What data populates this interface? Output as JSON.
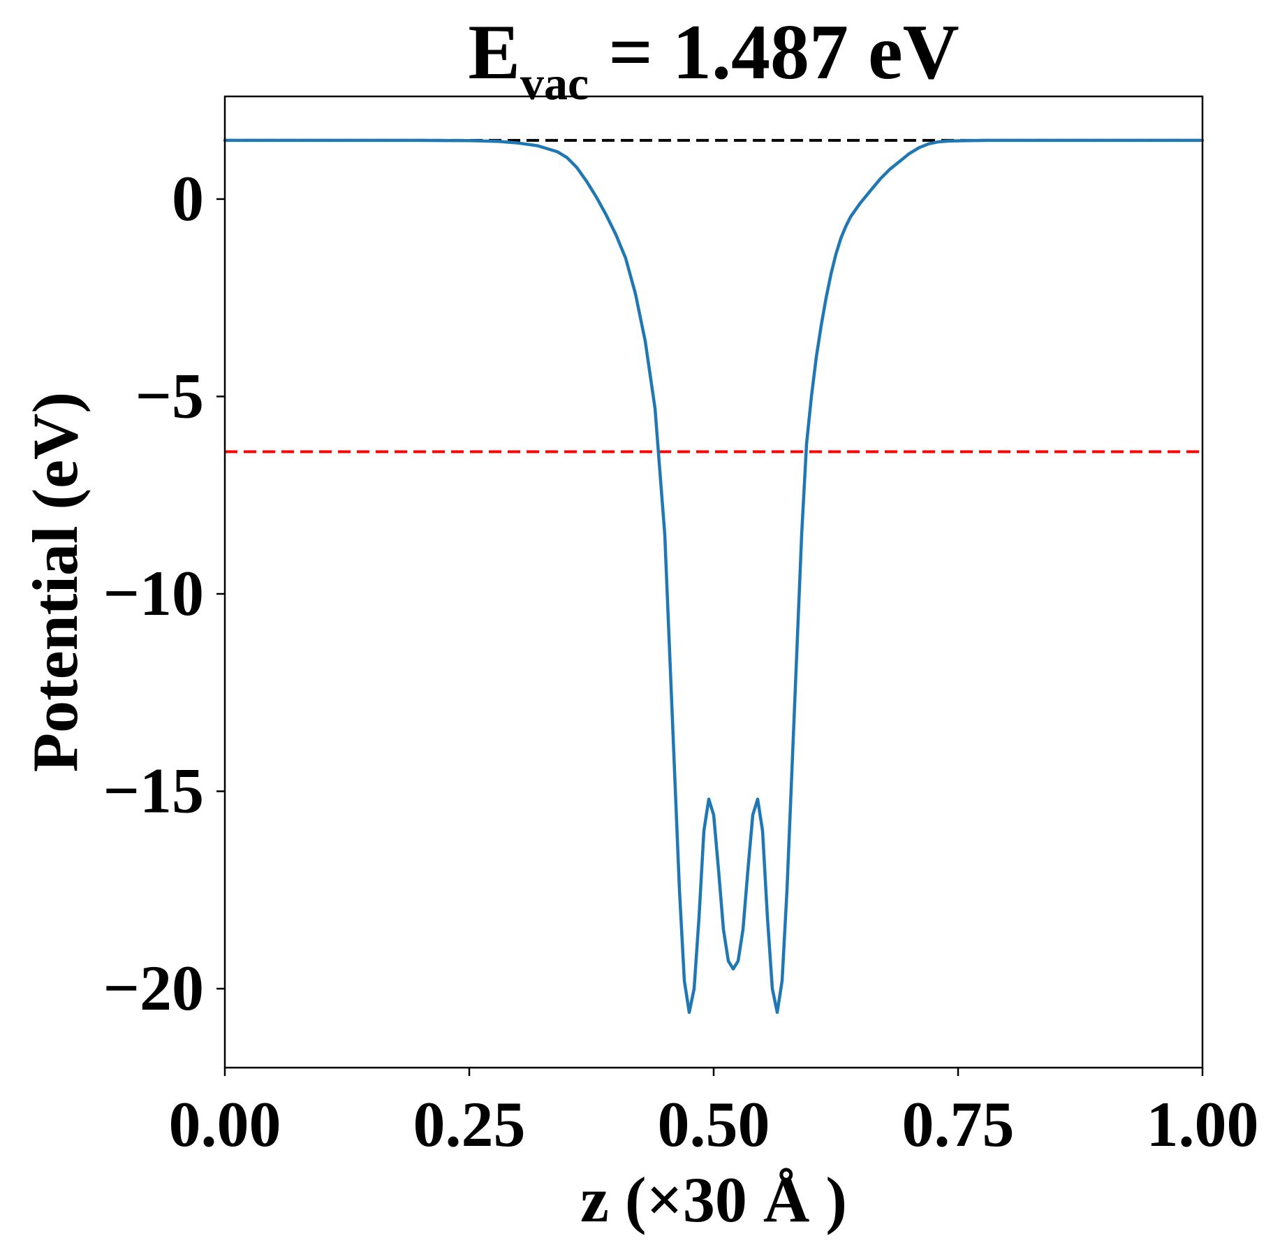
{
  "chart_data": {
    "type": "line",
    "title": {
      "main": "E",
      "subscript": "vac",
      "rest": " = 1.487 eV"
    },
    "xlabel": "z (×30 Å )",
    "ylabel": "Potential (eV)",
    "xlim": [
      0.0,
      1.0
    ],
    "ylim": [
      -22.0,
      2.6
    ],
    "xticks": [
      {
        "value": 0.0,
        "label": "0.00"
      },
      {
        "value": 0.25,
        "label": "0.25"
      },
      {
        "value": 0.5,
        "label": "0.50"
      },
      {
        "value": 0.75,
        "label": "0.75"
      },
      {
        "value": 1.0,
        "label": "1.00"
      }
    ],
    "yticks": [
      {
        "value": 0,
        "label": "0"
      },
      {
        "value": -5,
        "label": "−5"
      },
      {
        "value": -10,
        "label": "−10"
      },
      {
        "value": -15,
        "label": "−15"
      },
      {
        "value": -20,
        "label": "−20"
      }
    ],
    "grid": false,
    "reference_lines": [
      {
        "y": 1.487,
        "color": "#000000",
        "style": "dashed"
      },
      {
        "y": -6.4,
        "color": "#ff0000",
        "style": "dashed"
      }
    ],
    "series": [
      {
        "color": "#1f77b4",
        "x": [
          0.0,
          0.05,
          0.1,
          0.15,
          0.2,
          0.25,
          0.28,
          0.3,
          0.32,
          0.34,
          0.35,
          0.36,
          0.37,
          0.38,
          0.39,
          0.4,
          0.41,
          0.42,
          0.43,
          0.44,
          0.45,
          0.455,
          0.46,
          0.465,
          0.47,
          0.475,
          0.48,
          0.485,
          0.49,
          0.495,
          0.5,
          0.505,
          0.51,
          0.515,
          0.52,
          0.525,
          0.53,
          0.535,
          0.54,
          0.545,
          0.55,
          0.555,
          0.56,
          0.565,
          0.57,
          0.575,
          0.58,
          0.585,
          0.59,
          0.595,
          0.6,
          0.605,
          0.61,
          0.615,
          0.62,
          0.625,
          0.63,
          0.635,
          0.64,
          0.65,
          0.66,
          0.67,
          0.68,
          0.69,
          0.7,
          0.71,
          0.72,
          0.73,
          0.74,
          0.76,
          0.78,
          0.8,
          0.85,
          0.9,
          0.95,
          1.0
        ],
        "y": [
          1.487,
          1.487,
          1.487,
          1.487,
          1.487,
          1.48,
          1.46,
          1.42,
          1.35,
          1.2,
          1.05,
          0.8,
          0.45,
          0.05,
          -0.4,
          -0.9,
          -1.5,
          -2.4,
          -3.6,
          -5.3,
          -8.5,
          -11.5,
          -14.5,
          -17.5,
          -19.8,
          -20.6,
          -20.0,
          -18.2,
          -16.0,
          -15.2,
          -15.6,
          -17.0,
          -18.5,
          -19.3,
          -19.5,
          -19.3,
          -18.5,
          -17.0,
          -15.6,
          -15.2,
          -16.0,
          -18.2,
          -20.0,
          -20.6,
          -19.8,
          -17.5,
          -14.5,
          -11.5,
          -8.5,
          -6.2,
          -5.0,
          -4.0,
          -3.2,
          -2.5,
          -1.9,
          -1.4,
          -1.0,
          -0.7,
          -0.45,
          -0.1,
          0.2,
          0.5,
          0.75,
          0.95,
          1.15,
          1.3,
          1.4,
          1.45,
          1.47,
          1.48,
          1.487,
          1.487,
          1.487,
          1.487,
          1.487,
          1.487
        ]
      }
    ]
  }
}
